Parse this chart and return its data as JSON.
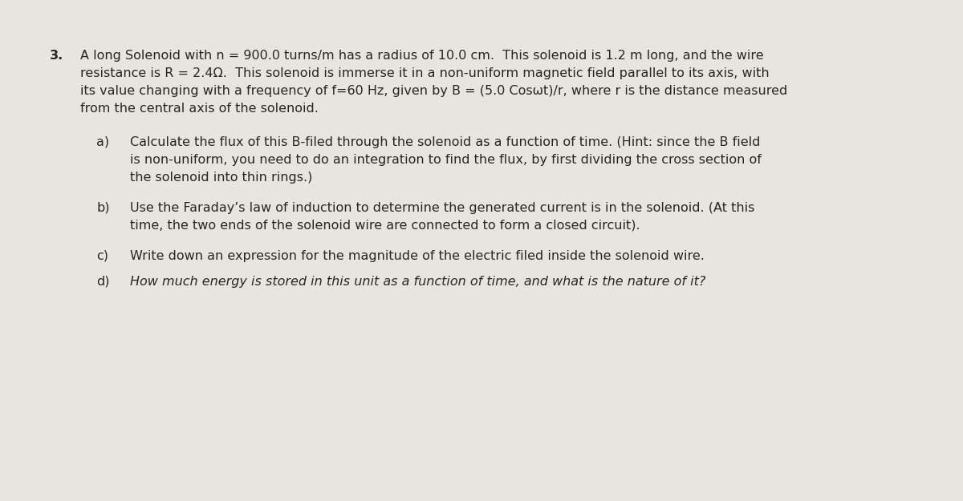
{
  "background_color": "#e8e5e0",
  "problem_number": "3.",
  "main_text_line1": "A long Solenoid with n = 900.0 turns/m has a radius of 10.0 cm.  This solenoid is 1.2 m long, and the wire",
  "main_text_line2": "resistance is R = 2.4Ω.  This solenoid is immerse it in a non-uniform magnetic field parallel to its axis, with",
  "main_text_line3": "its value changing with a frequency of f=60 Hz, given by B = (5.0 Cosωt)/r, where r is the distance measured",
  "main_text_line4": "from the central axis of the solenoid.",
  "part_a_label": "a)",
  "part_a_line1": "Calculate the flux of this B-filed through the solenoid as a function of time. (Hint: since the B field",
  "part_a_line2": "is non-uniform, you need to do an integration to find the flux, by first dividing the cross section of",
  "part_a_line3": "the solenoid into thin rings.)",
  "part_b_label": "b)",
  "part_b_line1": "Use the Faraday’s law of induction to determine the generated current is in the solenoid. (At this",
  "part_b_line2": "time, the two ends of the solenoid wire are connected to form a closed circuit).",
  "part_c_label": "c)",
  "part_c_line1": "Write down an expression for the magnitude of the electric filed inside the solenoid wire.",
  "part_d_label": "d)",
  "part_d_line1": "How much energy is stored in this unit as a function of time, and what is the nature of it?",
  "font_size_main": 11.5,
  "text_color": "#2a2520",
  "font_family": "DejaVu Sans"
}
